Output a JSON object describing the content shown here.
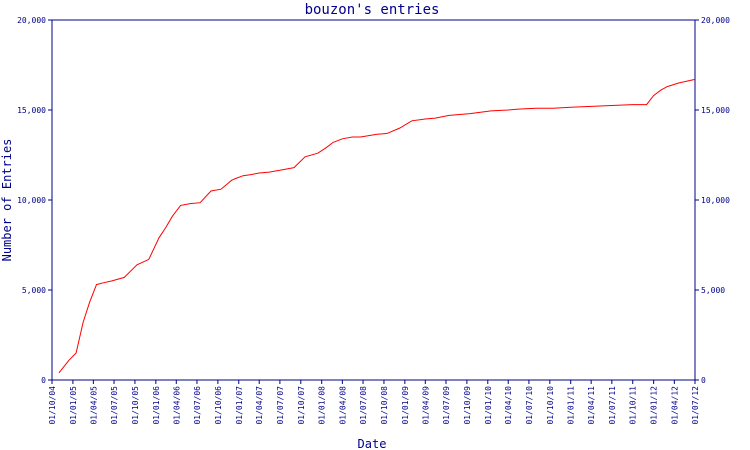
{
  "chart_data": {
    "type": "line",
    "title": "bouzon's entries",
    "xlabel": "Date",
    "ylabel": "Number of Entries",
    "ylim": [
      0,
      20000
    ],
    "y_ticks": [
      0,
      5000,
      10000,
      15000,
      20000
    ],
    "y_tick_labels": [
      "0",
      "5,000",
      "10,000",
      "15,000",
      "20,000"
    ],
    "x_range": [
      "2004-10-01",
      "2012-07-01"
    ],
    "x_tick_labels": [
      "01/10/04",
      "01/01/05",
      "01/04/05",
      "01/07/05",
      "01/10/05",
      "01/01/06",
      "01/04/06",
      "01/07/06",
      "01/10/06",
      "01/01/07",
      "01/04/07",
      "01/07/07",
      "01/10/07",
      "01/01/08",
      "01/04/08",
      "01/07/08",
      "01/10/08",
      "01/01/09",
      "01/04/09",
      "01/07/09",
      "01/10/09",
      "01/01/10",
      "01/04/10",
      "01/07/10",
      "01/10/10",
      "01/01/11",
      "01/04/11",
      "01/07/11",
      "01/10/11",
      "01/01/12",
      "01/04/12",
      "01/07/12"
    ],
    "grid": false,
    "legend": "none",
    "line_color": "#ff0000",
    "axis_color": "#00008b",
    "series": [
      {
        "x": [
          "2004-11-01",
          "2004-12-15",
          "2005-01-15",
          "2005-02-15",
          "2005-03-15",
          "2005-04-15",
          "2005-05-15",
          "2005-06-20",
          "2005-08-15",
          "2005-10-10",
          "2005-12-01",
          "2006-01-15",
          "2006-02-15",
          "2006-03-15",
          "2006-04-20",
          "2006-06-01",
          "2006-07-15",
          "2006-09-01",
          "2006-10-15",
          "2006-12-01",
          "2006-12-20",
          "2007-01-20",
          "2007-02-20",
          "2007-04-01",
          "2007-05-15",
          "2007-07-01",
          "2007-09-01",
          "2007-10-20",
          "2007-12-15",
          "2008-01-20",
          "2008-02-20",
          "2008-04-01",
          "2008-05-15",
          "2008-06-20",
          "2008-09-01",
          "2008-10-15",
          "2008-12-10",
          "2009-02-01",
          "2009-04-01",
          "2009-05-15",
          "2009-07-15",
          "2009-10-15",
          "2010-01-15",
          "2010-04-01",
          "2010-05-15",
          "2010-08-01",
          "2010-10-15",
          "2011-01-01",
          "2011-04-01",
          "2011-07-01",
          "2011-10-01",
          "2011-12-01",
          "2012-01-01",
          "2012-02-01",
          "2012-03-01",
          "2012-04-20",
          "2012-07-01"
        ],
        "y": [
          400,
          1100,
          1500,
          3200,
          4300,
          5300,
          5400,
          5500,
          5700,
          6400,
          6700,
          7900,
          8500,
          9100,
          9700,
          9800,
          9850,
          10500,
          10600,
          11100,
          11200,
          11350,
          11400,
          11500,
          11550,
          11650,
          11800,
          12400,
          12600,
          12900,
          13200,
          13400,
          13500,
          13500,
          13650,
          13700,
          14000,
          14400,
          14500,
          14550,
          14700,
          14800,
          14950,
          15000,
          15050,
          15100,
          15100,
          15150,
          15200,
          15250,
          15300,
          15300,
          15800,
          16100,
          16300,
          16500,
          16700
        ]
      }
    ]
  }
}
